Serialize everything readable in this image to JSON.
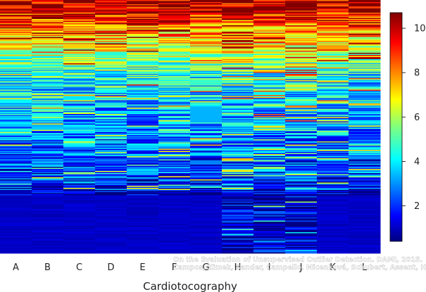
{
  "chart_data": {
    "type": "heatmap",
    "title": "",
    "xlabel": "Cardiotocography",
    "ylabel": "",
    "categories": [
      "A",
      "B",
      "C",
      "D",
      "E",
      "F",
      "G",
      "H",
      "I",
      "J",
      "K",
      "L"
    ],
    "colorbar": {
      "min": 0.4,
      "max": 10.7,
      "ticks": [
        2,
        4,
        6,
        8,
        10
      ],
      "colormap": "jet"
    },
    "rows": 1800,
    "legend": "right",
    "grid": false
  },
  "credit": {
    "line1": "On the Evaluation of Unsupervised Outlier Detection. DAMI, 2015.",
    "line2": "Campos, Zimek, Sander, Campello, Micenková, Schubert, Assent, Houle"
  }
}
